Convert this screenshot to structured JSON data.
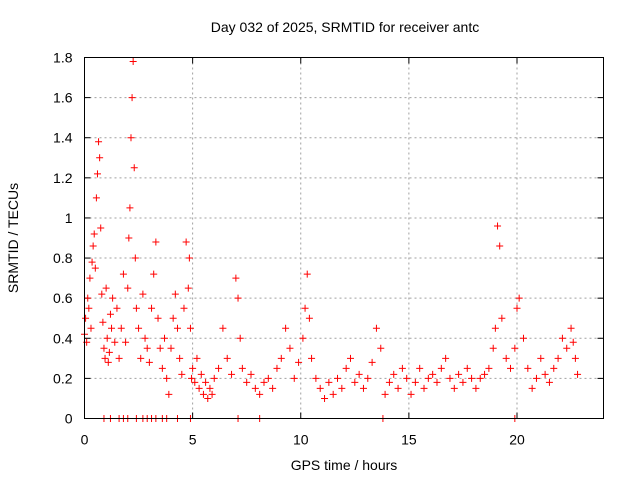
{
  "chart_data": {
    "type": "scatter",
    "title": "Day 032 of 2025, SRMTID for receiver antc",
    "xlabel": "GPS time / hours",
    "ylabel": "SRMTID / TECUs",
    "xlim": [
      0,
      24
    ],
    "ylim": [
      0,
      1.8
    ],
    "xticks": [
      0,
      5,
      10,
      15,
      20
    ],
    "yticks": [
      0,
      0.2,
      0.4,
      0.6,
      0.8,
      1,
      1.2,
      1.4,
      1.6,
      1.8
    ],
    "ytick_labels": [
      "0",
      "0.2",
      "0.4",
      "0.6",
      "0.8",
      "1",
      "1.2",
      "1.4",
      "1.6",
      "1.8"
    ],
    "grid": true,
    "marker": "plus",
    "color": "#ff0000",
    "series": [
      {
        "name": "SRMTID",
        "x": [
          0.0,
          0.05,
          0.1,
          0.15,
          0.2,
          0.25,
          0.3,
          0.35,
          0.4,
          0.45,
          0.5,
          0.55,
          0.6,
          0.65,
          0.7,
          0.75,
          0.8,
          0.85,
          0.9,
          0.95,
          1.0,
          1.05,
          1.1,
          1.15,
          1.2,
          1.25,
          1.3,
          1.4,
          1.5,
          1.6,
          1.7,
          1.8,
          1.9,
          2.0,
          2.05,
          2.1,
          2.15,
          2.2,
          2.25,
          2.3,
          2.35,
          2.4,
          2.5,
          2.6,
          2.7,
          2.8,
          2.9,
          3.0,
          3.1,
          3.2,
          3.3,
          3.4,
          3.5,
          3.6,
          3.7,
          3.8,
          3.9,
          4.0,
          4.1,
          4.2,
          4.3,
          4.4,
          4.5,
          4.6,
          4.7,
          4.8,
          4.85,
          4.9,
          4.95,
          5.0,
          5.1,
          5.2,
          5.3,
          5.4,
          5.5,
          5.6,
          5.7,
          5.8,
          5.9,
          6.0,
          6.2,
          6.4,
          6.6,
          6.8,
          7.0,
          7.1,
          7.2,
          7.3,
          7.5,
          7.7,
          7.9,
          8.1,
          8.3,
          8.5,
          8.7,
          8.9,
          9.1,
          9.3,
          9.5,
          9.7,
          9.9,
          10.1,
          10.2,
          10.3,
          10.4,
          10.5,
          10.7,
          10.9,
          11.1,
          11.3,
          11.5,
          11.7,
          11.9,
          12.1,
          12.3,
          12.5,
          12.7,
          12.9,
          13.1,
          13.3,
          13.5,
          13.7,
          13.9,
          14.1,
          14.3,
          14.5,
          14.7,
          14.9,
          15.1,
          15.3,
          15.5,
          15.7,
          15.9,
          16.1,
          16.3,
          16.5,
          16.7,
          16.9,
          17.1,
          17.3,
          17.5,
          17.7,
          17.9,
          18.1,
          18.3,
          18.5,
          18.7,
          18.9,
          19.0,
          19.1,
          19.2,
          19.3,
          19.5,
          19.7,
          19.9,
          20.0,
          20.1,
          20.3,
          20.5,
          20.7,
          20.9,
          21.1,
          21.3,
          21.5,
          21.7,
          21.9,
          22.1,
          22.3,
          22.5,
          22.6,
          22.7,
          22.8
        ],
        "y": [
          0.42,
          0.5,
          0.38,
          0.6,
          0.55,
          0.7,
          0.45,
          0.78,
          0.86,
          0.92,
          0.75,
          1.1,
          1.22,
          1.38,
          1.3,
          0.95,
          0.62,
          0.48,
          0.35,
          0.3,
          0.65,
          0.4,
          0.28,
          0.33,
          0.52,
          0.45,
          0.6,
          0.38,
          0.55,
          0.3,
          0.45,
          0.72,
          0.38,
          0.65,
          0.9,
          1.05,
          1.4,
          1.6,
          1.78,
          1.25,
          0.8,
          0.55,
          0.45,
          0.3,
          0.62,
          0.4,
          0.35,
          0.28,
          0.55,
          0.72,
          0.88,
          0.5,
          0.35,
          0.25,
          0.4,
          0.2,
          0.12,
          0.35,
          0.5,
          0.62,
          0.45,
          0.3,
          0.22,
          0.55,
          0.88,
          0.65,
          0.8,
          0.45,
          0.2,
          0.25,
          0.18,
          0.3,
          0.15,
          0.22,
          0.12,
          0.18,
          0.1,
          0.15,
          0.12,
          0.2,
          0.25,
          0.45,
          0.3,
          0.22,
          0.7,
          0.6,
          0.4,
          0.25,
          0.18,
          0.22,
          0.15,
          0.12,
          0.18,
          0.2,
          0.15,
          0.25,
          0.3,
          0.45,
          0.35,
          0.2,
          0.28,
          0.4,
          0.55,
          0.72,
          0.5,
          0.3,
          0.2,
          0.15,
          0.1,
          0.18,
          0.12,
          0.2,
          0.15,
          0.25,
          0.3,
          0.18,
          0.22,
          0.15,
          0.2,
          0.28,
          0.45,
          0.35,
          0.12,
          0.18,
          0.22,
          0.15,
          0.25,
          0.2,
          0.12,
          0.18,
          0.25,
          0.15,
          0.2,
          0.22,
          0.18,
          0.25,
          0.3,
          0.2,
          0.15,
          0.22,
          0.18,
          0.25,
          0.2,
          0.15,
          0.2,
          0.22,
          0.25,
          0.35,
          0.45,
          0.96,
          0.86,
          0.5,
          0.3,
          0.25,
          0.35,
          0.55,
          0.6,
          0.4,
          0.25,
          0.15,
          0.2,
          0.3,
          0.22,
          0.18,
          0.25,
          0.3,
          0.4,
          0.35,
          0.45,
          0.38,
          0.3,
          0.22
        ],
        "zero_markers_x": [
          0.9,
          1.2,
          1.6,
          1.8,
          2.0,
          2.4,
          2.7,
          2.9,
          3.1,
          3.3,
          3.6,
          3.8,
          4.3,
          4.9,
          7.1,
          8.1,
          13.8,
          19.9
        ]
      }
    ]
  }
}
